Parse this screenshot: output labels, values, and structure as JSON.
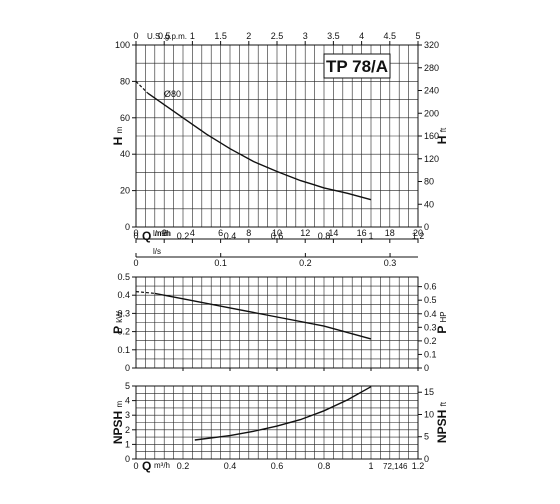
{
  "model_label": "TP 78/A",
  "code_label": "72,146",
  "chart_data": [
    {
      "type": "line",
      "name": "head",
      "ylabel": "H",
      "ylabel_unit": "m",
      "ylim": [
        0,
        100
      ],
      "y_ticks": [
        0,
        20,
        40,
        60,
        80,
        100
      ],
      "right_axis_label": "H",
      "right_axis_unit": "ft",
      "right_ticks": [
        "0",
        "40",
        "80",
        "120",
        "160",
        "200",
        "240",
        "280",
        "320"
      ],
      "right_ylim": [
        0,
        320
      ],
      "top_axis_label": "U.S. g.p.m.",
      "top_ticks": [
        "0",
        "0.5",
        "1",
        "1.5",
        "2",
        "2.5",
        "3",
        "3.5",
        "4",
        "4.5",
        "5"
      ],
      "top_xlim": [
        0,
        5
      ],
      "xlim": [
        0,
        1.2
      ],
      "x_ticks": [
        "0",
        "0.2",
        "0.4",
        "0.6",
        "0.8",
        "1",
        "1.2"
      ],
      "x_axis_label": "Q",
      "x_axis_unit": "m³/h",
      "lmin_label": "l/min",
      "lmin_ticks": [
        "0",
        "2",
        "4",
        "6",
        "8",
        "10",
        "12",
        "14",
        "16",
        "18",
        "20"
      ],
      "lmin_xlim": [
        0,
        20
      ],
      "ls_label": "l/s",
      "ls_ticks": [
        "0",
        "0.1",
        "0.2",
        "0.3"
      ],
      "ls_xlim": [
        0,
        0.333
      ],
      "curve_label": "Ø80",
      "dashed": {
        "x": [
          0,
          0.05
        ],
        "y": [
          80,
          73.5
        ]
      },
      "x": [
        0.05,
        0.2,
        0.3,
        0.4,
        0.5,
        0.6,
        0.7,
        0.75,
        0.8,
        0.9,
        1.0
      ],
      "y": [
        73.5,
        60,
        51,
        43,
        36,
        30.5,
        25.5,
        23.5,
        21.5,
        18.5,
        15
      ]
    },
    {
      "type": "line",
      "name": "power",
      "ylabel": "P",
      "ylabel_unit": "kW",
      "ylim": [
        0,
        0.5
      ],
      "y_ticks": [
        "0",
        "0.1",
        "0.2",
        "0.3",
        "0.4",
        "0.5"
      ],
      "right_axis_label": "P",
      "right_axis_unit": "HP",
      "right_ticks": [
        "0",
        "0.1",
        "0.2",
        "0.3",
        "0.4",
        "0.5",
        "0.6"
      ],
      "right_ylim": [
        0,
        0.671
      ],
      "xlim": [
        0,
        1.2
      ],
      "x_ticks": [
        "0",
        "0.2",
        "0.4",
        "0.6",
        "0.8",
        "1",
        "1.2"
      ],
      "dashed": {
        "x": [
          0,
          0.08
        ],
        "y": [
          0.42,
          0.41
        ]
      },
      "x": [
        0.08,
        0.2,
        0.4,
        0.6,
        0.8,
        1.0
      ],
      "y": [
        0.41,
        0.38,
        0.33,
        0.28,
        0.23,
        0.16
      ]
    },
    {
      "type": "line",
      "name": "npsh",
      "ylabel": "NPSH",
      "ylabel_unit": "m",
      "ylim": [
        0,
        5
      ],
      "y_ticks": [
        "0",
        "1",
        "2",
        "3",
        "4",
        "5"
      ],
      "right_axis_label": "NPSH",
      "right_axis_unit": "ft",
      "right_ticks": [
        "0",
        "5",
        "10",
        "15"
      ],
      "right_ylim": [
        0,
        16.4
      ],
      "xlim": [
        0,
        1.2
      ],
      "x_ticks": [
        "0",
        "0.2",
        "0.4",
        "0.6",
        "0.8",
        "1",
        "1.2"
      ],
      "x_axis_label": "Q",
      "x_axis_unit": "m³/h",
      "x": [
        0.25,
        0.4,
        0.5,
        0.6,
        0.7,
        0.8,
        0.9,
        1.0
      ],
      "y": [
        1.3,
        1.6,
        1.9,
        2.25,
        2.7,
        3.3,
        4.05,
        4.95
      ]
    }
  ]
}
